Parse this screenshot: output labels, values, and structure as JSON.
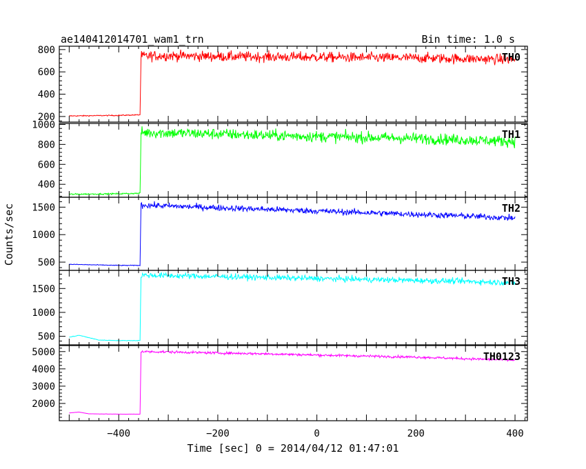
{
  "header": {
    "title": "ae140412014701_wam1_trn",
    "bin_time": "Bin time: 1.0 s"
  },
  "chart_data": {
    "type": "line",
    "title": "ae140412014701_wam1_trn",
    "subtitle": "Bin time: 1.0 s",
    "xlabel": "Time [sec] 0 = 2014/04/12 01:47:01",
    "ylabel": "Counts/sec",
    "xlim": [
      -520,
      425
    ],
    "x_ticks": [
      -400,
      -200,
      0,
      200,
      400
    ],
    "bin_time_s": 1.0,
    "grid": false,
    "panels": [
      {
        "name": "TH0",
        "color": "#ff0000",
        "ylim": [
          150,
          830
        ],
        "y_ticks": [
          200,
          400,
          600,
          800
        ],
        "x": [
          -500,
          -400,
          -357,
          -355,
          -300,
          -200,
          -100,
          0,
          100,
          200,
          300,
          400
        ],
        "y": [
          205,
          210,
          215,
          740,
          745,
          738,
          735,
          732,
          728,
          725,
          718,
          710
        ]
      },
      {
        "name": "TH1",
        "color": "#00ff00",
        "ylim": [
          270,
          1010
        ],
        "y_ticks": [
          400,
          600,
          800,
          1000
        ],
        "x": [
          -500,
          -400,
          -357,
          -355,
          -300,
          -200,
          -100,
          0,
          100,
          200,
          300,
          400
        ],
        "y": [
          300,
          305,
          310,
          920,
          915,
          905,
          890,
          880,
          870,
          860,
          845,
          830
        ]
      },
      {
        "name": "TH2",
        "color": "#0000ff",
        "ylim": [
          350,
          1680
        ],
        "y_ticks": [
          500,
          1000,
          1500
        ],
        "x": [
          -500,
          -400,
          -357,
          -355,
          -300,
          -200,
          -100,
          0,
          100,
          200,
          300,
          400
        ],
        "y": [
          460,
          440,
          440,
          1540,
          1520,
          1490,
          1460,
          1430,
          1400,
          1370,
          1340,
          1300
        ]
      },
      {
        "name": "TH3",
        "color": "#00ffff",
        "ylim": [
          320,
          1880
        ],
        "y_ticks": [
          500,
          1000,
          1500
        ],
        "x": [
          -500,
          -480,
          -460,
          -440,
          -400,
          -357,
          -355,
          -300,
          -200,
          -100,
          0,
          100,
          200,
          300,
          400
        ],
        "y": [
          480,
          520,
          470,
          420,
          410,
          410,
          1780,
          1770,
          1750,
          1730,
          1710,
          1690,
          1670,
          1650,
          1620
        ]
      },
      {
        "name": "TH0123",
        "color": "#ff00ff",
        "ylim": [
          1000,
          5350
        ],
        "y_ticks": [
          2000,
          3000,
          4000,
          5000
        ],
        "x": [
          -500,
          -480,
          -460,
          -400,
          -357,
          -355,
          -300,
          -200,
          -100,
          0,
          100,
          200,
          300,
          400
        ],
        "y": [
          1450,
          1500,
          1400,
          1380,
          1380,
          5000,
          4980,
          4920,
          4870,
          4800,
          4740,
          4680,
          4590,
          4500
        ]
      }
    ],
    "noise_amplitude": [
      45,
      55,
      55,
      60,
      70
    ]
  }
}
